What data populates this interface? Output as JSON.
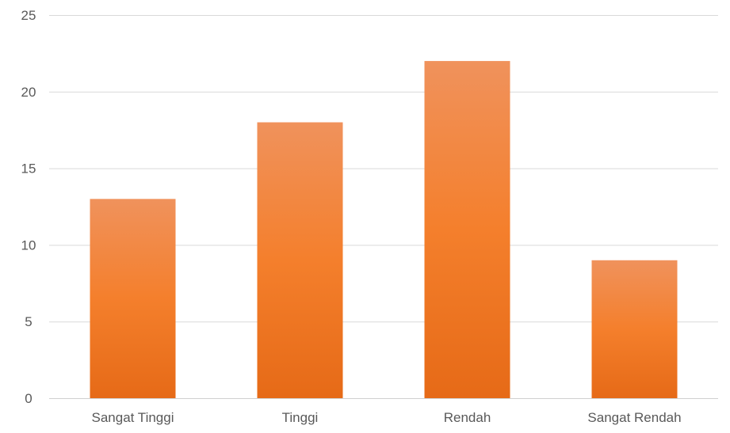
{
  "chart_data": {
    "type": "bar",
    "categories": [
      "Sangat Tinggi",
      "Tinggi",
      "Rendah",
      "Sangat Rendah"
    ],
    "values": [
      13,
      18,
      22,
      9
    ],
    "title": "",
    "xlabel": "",
    "ylabel": "",
    "ylim": [
      0,
      25
    ],
    "yticks": [
      0,
      5,
      10,
      15,
      20,
      25
    ],
    "grid": true,
    "legend": "none",
    "colors": {
      "bar_top": "#f0925c",
      "bar_mid": "#f47f2c",
      "bar_bottom": "#e66a17",
      "grid": "#d9d9d9",
      "text": "#595959"
    }
  }
}
